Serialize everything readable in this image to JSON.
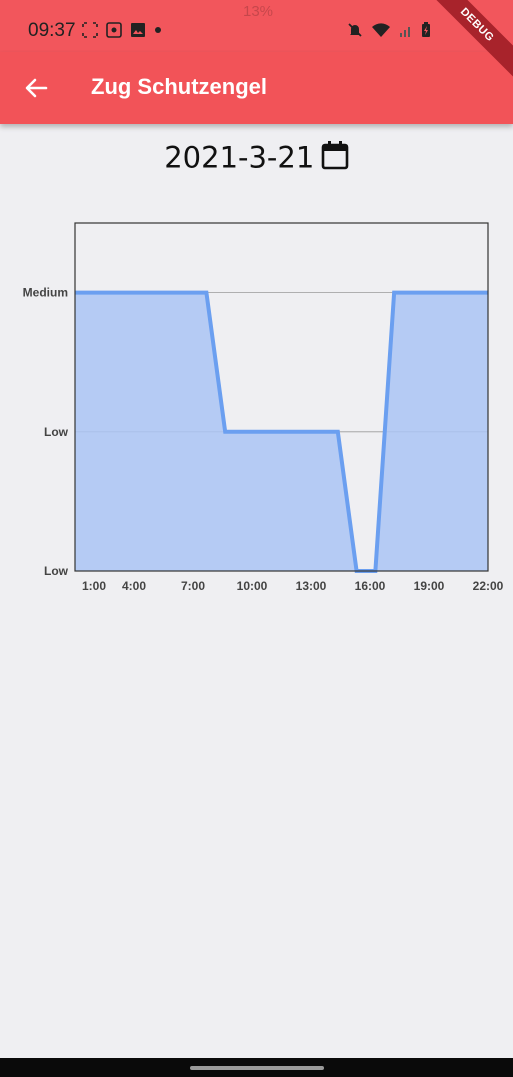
{
  "status_bar": {
    "time": "09:37",
    "battery_text": "13%",
    "icons_left": [
      "fullscreen-icon",
      "screenshot-icon",
      "image-icon",
      "dot-icon"
    ],
    "icons_right": [
      "mute-icon",
      "wifi-icon",
      "signal-icon",
      "battery-charging-icon"
    ]
  },
  "app_bar": {
    "title": "Zug Schutzengel",
    "back_icon": "arrow-back-icon",
    "background": "#f25358"
  },
  "debug_banner": "DEBUG",
  "date": {
    "value": "2021-3-21",
    "icon": "calendar-icon"
  },
  "chart_data": {
    "type": "area",
    "x_ticks": [
      "1:00",
      "4:00",
      "7:00",
      "10:00",
      "13:00",
      "16:00",
      "19:00",
      "22:00"
    ],
    "y_levels": [
      "Low",
      "Low",
      "Medium"
    ],
    "x": [
      0,
      1,
      2,
      3,
      4,
      5,
      6,
      7,
      8,
      9,
      10,
      11,
      12,
      13,
      14,
      15,
      16,
      17,
      18,
      19,
      20,
      21,
      22
    ],
    "values": [
      2,
      2,
      2,
      2,
      2,
      2,
      2,
      2,
      1,
      1,
      1,
      1,
      1,
      1,
      1,
      0,
      0,
      2,
      2,
      2,
      2,
      2,
      2
    ],
    "ylim": [
      0,
      2.5
    ],
    "series_color": "#6b9ff0",
    "fill_color": "#aac4f5",
    "grid": true,
    "xlabel": "",
    "ylabel": ""
  }
}
